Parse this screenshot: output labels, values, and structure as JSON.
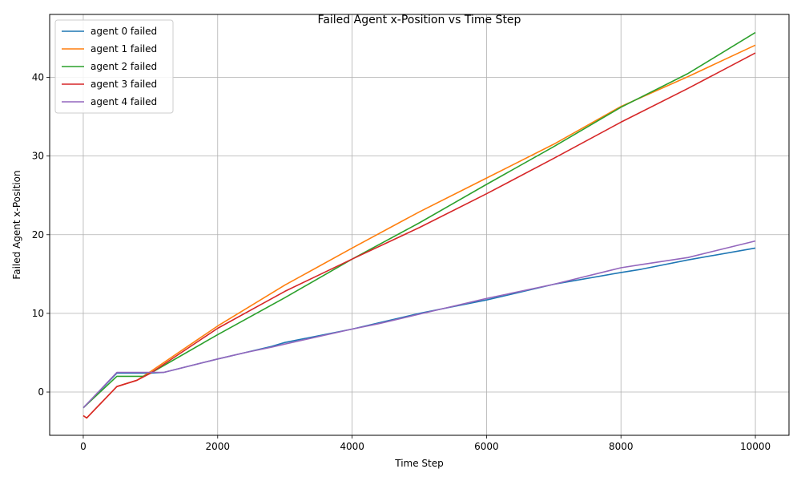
{
  "chart_data": {
    "type": "line",
    "title": "Failed Agent x-Position vs Time Step",
    "xlabel": "Time Step",
    "ylabel": "Failed Agent x-Position",
    "xlim": [
      -500,
      10500
    ],
    "ylim": [
      -5.5,
      48
    ],
    "xticks": [
      0,
      2000,
      4000,
      6000,
      8000,
      10000
    ],
    "yticks": [
      0,
      10,
      20,
      30,
      40
    ],
    "grid": true,
    "legend_position": "top-left",
    "series": [
      {
        "name": "agent 0 failed",
        "color": "#1f77b4",
        "x": [
          0,
          500,
          1000,
          1200,
          2000,
          2400,
          2800,
          3000,
          4000,
          4400,
          5000,
          6000,
          7000,
          8000,
          8300,
          9000,
          10000
        ],
        "y": [
          -2,
          2.4,
          2.4,
          2.5,
          4.2,
          5.0,
          5.8,
          6.3,
          8.0,
          8.8,
          10.0,
          11.7,
          13.7,
          15.2,
          15.6,
          16.8,
          18.3
        ]
      },
      {
        "name": "agent 1 failed",
        "color": "#ff7f0e",
        "x": [
          0,
          50,
          500,
          800,
          1000,
          2000,
          3000,
          4000,
          5000,
          6000,
          7000,
          8000,
          9000,
          10000
        ],
        "y": [
          -3,
          -3.3,
          0.7,
          1.5,
          2.6,
          8.4,
          13.6,
          18.3,
          22.9,
          27.2,
          31.5,
          36.3,
          40.1,
          44.1
        ]
      },
      {
        "name": "agent 2 failed",
        "color": "#2ca02c",
        "x": [
          0,
          500,
          900,
          1000,
          2000,
          3000,
          4000,
          5000,
          6000,
          7000,
          8000,
          9000,
          10000
        ],
        "y": [
          -2,
          2.0,
          2.0,
          2.4,
          7.3,
          12.0,
          16.9,
          21.5,
          26.4,
          31.2,
          36.2,
          40.5,
          45.7
        ]
      },
      {
        "name": "agent 3 failed",
        "color": "#d62728",
        "x": [
          0,
          50,
          500,
          800,
          1000,
          2000,
          3000,
          4000,
          5000,
          6000,
          7000,
          8000,
          9000,
          10000
        ],
        "y": [
          -3,
          -3.3,
          0.7,
          1.5,
          2.4,
          8.1,
          12.8,
          16.9,
          20.9,
          25.2,
          29.7,
          34.3,
          38.6,
          43.1
        ]
      },
      {
        "name": "agent 4 failed",
        "color": "#9467bd",
        "x": [
          0,
          500,
          1000,
          1200,
          2000,
          2400,
          2800,
          3000,
          4000,
          4400,
          5000,
          6000,
          7000,
          8000,
          8300,
          9000,
          10000
        ],
        "y": [
          -2,
          2.5,
          2.5,
          2.5,
          4.2,
          5.0,
          5.7,
          6.1,
          8.0,
          8.7,
          9.9,
          11.9,
          13.7,
          15.8,
          16.2,
          17.1,
          19.2
        ]
      }
    ]
  }
}
